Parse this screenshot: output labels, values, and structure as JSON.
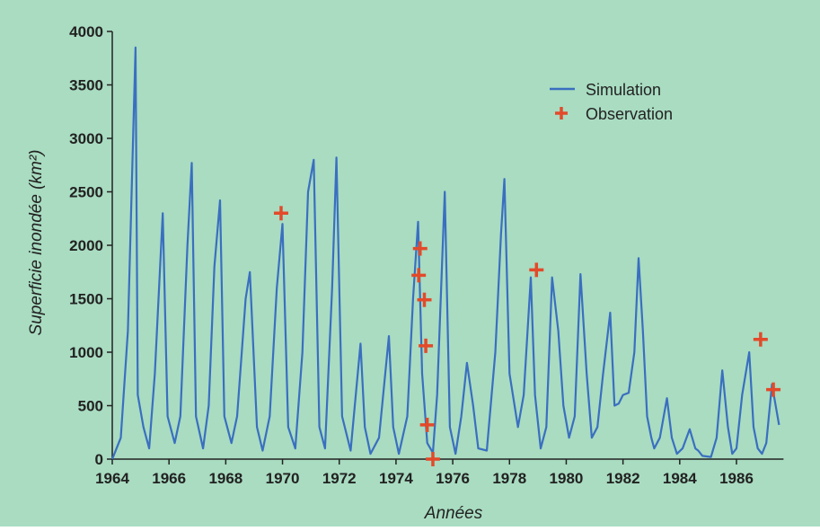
{
  "colors": {
    "background": "#a9dcc1",
    "simulation": "#3a6fc0",
    "observation": "#e24a2a",
    "axis": "#222222"
  },
  "chart_data": {
    "type": "line",
    "xlabel": "Années",
    "ylabel": "Superficie inondée (km²)",
    "xlim": [
      1964,
      1987.5
    ],
    "ylim": [
      0,
      4000
    ],
    "x_ticks": [
      1964,
      1966,
      1968,
      1970,
      1972,
      1974,
      1976,
      1978,
      1980,
      1982,
      1984,
      1986
    ],
    "x_tick_labels": [
      "1964",
      "1966",
      "1968",
      "1970",
      "1972",
      "1974",
      "1976",
      "1978",
      "1980",
      "1982",
      "1984",
      "1986"
    ],
    "y_ticks": [
      0,
      500,
      1000,
      1500,
      2000,
      2500,
      3000,
      3500,
      4000
    ],
    "y_tick_labels": [
      "0",
      "500",
      "1000",
      "1500",
      "2000",
      "2500",
      "3000",
      "3500",
      "4000"
    ],
    "legend": {
      "position": "top-right",
      "entries": [
        "Simulation",
        "Observation"
      ]
    },
    "grid": false,
    "series": [
      {
        "name": "Simulation",
        "kind": "line",
        "x": [
          1964.0,
          1964.3,
          1964.55,
          1964.82,
          1964.9,
          1965.1,
          1965.3,
          1965.5,
          1965.78,
          1965.95,
          1966.2,
          1966.4,
          1966.65,
          1966.8,
          1966.95,
          1967.2,
          1967.4,
          1967.6,
          1967.8,
          1967.95,
          1968.2,
          1968.4,
          1968.7,
          1968.85,
          1969.1,
          1969.3,
          1969.55,
          1969.8,
          1970.0,
          1970.2,
          1970.45,
          1970.7,
          1970.9,
          1971.1,
          1971.3,
          1971.5,
          1971.75,
          1971.9,
          1972.1,
          1972.4,
          1972.75,
          1972.9,
          1973.1,
          1973.4,
          1973.75,
          1973.9,
          1974.1,
          1974.4,
          1974.6,
          1974.78,
          1974.92,
          1975.1,
          1975.3,
          1975.45,
          1975.72,
          1975.9,
          1976.1,
          1976.3,
          1976.5,
          1976.72,
          1976.9,
          1977.2,
          1977.5,
          1977.7,
          1977.82,
          1978.0,
          1978.3,
          1978.5,
          1978.75,
          1978.9,
          1979.1,
          1979.3,
          1979.5,
          1979.72,
          1979.9,
          1980.1,
          1980.3,
          1980.5,
          1980.72,
          1980.9,
          1981.1,
          1981.3,
          1981.55,
          1981.7,
          1981.85,
          1982.0,
          1982.2,
          1982.4,
          1982.55,
          1982.7,
          1982.85,
          1983.0,
          1983.1,
          1983.3,
          1983.55,
          1983.72,
          1983.9,
          1984.1,
          1984.35,
          1984.55,
          1984.65,
          1984.8,
          1985.1,
          1985.3,
          1985.5,
          1985.7,
          1985.85,
          1986.0,
          1986.2,
          1986.45,
          1986.6,
          1986.75,
          1986.9,
          1987.05,
          1987.25,
          1987.5
        ],
        "y": [
          0,
          200,
          1200,
          3850,
          600,
          300,
          100,
          800,
          2300,
          400,
          150,
          400,
          2000,
          2770,
          400,
          100,
          500,
          1800,
          2420,
          400,
          150,
          400,
          1500,
          1750,
          300,
          80,
          400,
          1600,
          2200,
          300,
          100,
          1000,
          2500,
          2800,
          300,
          100,
          1600,
          2820,
          400,
          80,
          1080,
          300,
          50,
          200,
          1150,
          300,
          50,
          400,
          1500,
          2220,
          800,
          150,
          60,
          600,
          2500,
          300,
          50,
          400,
          900,
          500,
          100,
          80,
          1000,
          2100,
          2620,
          800,
          300,
          600,
          1700,
          600,
          100,
          300,
          1700,
          1200,
          500,
          200,
          400,
          1730,
          800,
          200,
          300,
          800,
          1370,
          500,
          520,
          600,
          620,
          1000,
          1880,
          1200,
          400,
          200,
          100,
          200,
          570,
          200,
          50,
          100,
          280,
          100,
          80,
          30,
          20,
          200,
          830,
          300,
          50,
          100,
          600,
          1000,
          300,
          100,
          50,
          150,
          700,
          320
        ]
      },
      {
        "name": "Observation",
        "kind": "scatter",
        "x": [
          1969.95,
          1974.85,
          1974.8,
          1975.0,
          1975.05,
          1975.1,
          1975.3,
          1978.95,
          1986.85,
          1987.3
        ],
        "y": [
          2300,
          1970,
          1720,
          1490,
          1060,
          320,
          0,
          1770,
          1120,
          650
        ]
      }
    ]
  }
}
